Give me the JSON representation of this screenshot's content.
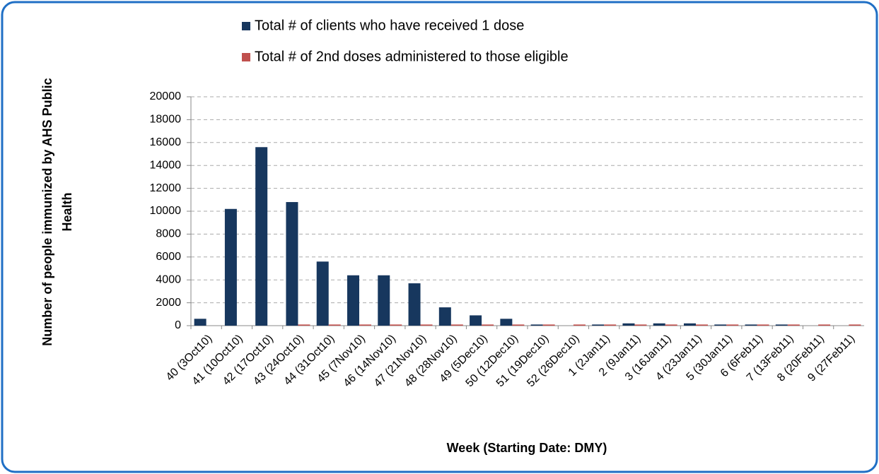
{
  "chart_data": {
    "type": "bar",
    "ylabel": [
      "Number of people immunized by AHS Public",
      "Health"
    ],
    "xlabel": "Week (Starting Date: DMY)",
    "categories": [
      "40 (3Oct10)",
      "41 (10Oct10)",
      "42 (17Oct10)",
      "43 (24Oct10)",
      "44 (31Oct10)",
      "45 (7Nov10)",
      "46 (14Nov10)",
      "47 (21Nov10)",
      "48 (28Nov10)",
      "49 (5Dec10)",
      "50 (12Dec10)",
      "51 (19Dec10)",
      "52 (26Dec10)",
      "1 (2Jan11)",
      "2 (9Jan11)",
      "3 (16Jan11)",
      "4 (23Jan11)",
      "5 (30Jan11)",
      "6 (6Feb11)",
      "7 (13Feb11)",
      "8 (20Feb11)",
      "9 (27Feb11)"
    ],
    "series": [
      {
        "name": "Total # of clients who have received 1 dose",
        "color": "#17375e",
        "values": [
          600,
          10200,
          15600,
          10800,
          5600,
          4400,
          4400,
          3700,
          1600,
          900,
          600,
          100,
          0,
          100,
          200,
          200,
          200,
          100,
          100,
          100,
          0,
          0
        ]
      },
      {
        "name": "Total # of 2nd doses administered to those eligible",
        "color": "#c0504d",
        "values": [
          0,
          0,
          0,
          100,
          100,
          100,
          100,
          100,
          100,
          100,
          100,
          100,
          100,
          100,
          100,
          100,
          100,
          100,
          100,
          100,
          100,
          100
        ]
      }
    ],
    "ylim": [
      0,
      20000
    ],
    "yticks": [
      0,
      2000,
      4000,
      6000,
      8000,
      10000,
      12000,
      14000,
      16000,
      18000,
      20000
    ],
    "grid": true,
    "legend": "top"
  }
}
